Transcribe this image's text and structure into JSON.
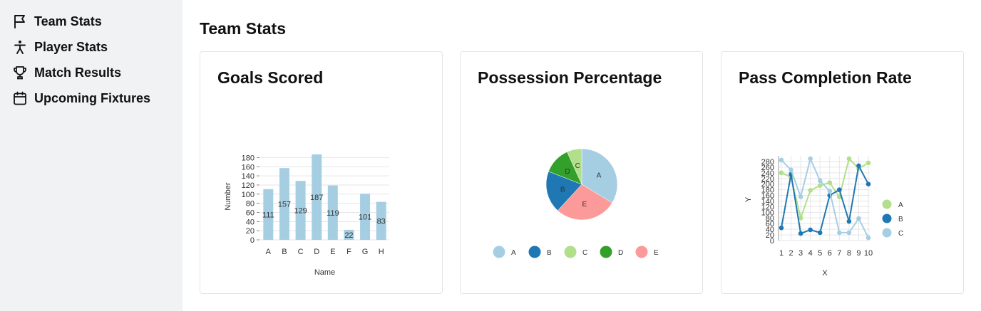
{
  "sidebar": {
    "items": [
      {
        "label": "Team Stats",
        "icon": "flag-icon"
      },
      {
        "label": "Player Stats",
        "icon": "person-icon"
      },
      {
        "label": "Match Results",
        "icon": "trophy-icon"
      },
      {
        "label": "Upcoming Fixtures",
        "icon": "calendar-icon"
      }
    ]
  },
  "page": {
    "title": "Team Stats"
  },
  "cards": [
    {
      "title": "Goals Scored"
    },
    {
      "title": "Possession Percentage"
    },
    {
      "title": "Pass Completion Rate"
    }
  ],
  "colors": {
    "light_blue": "#a6cee3",
    "blue": "#1f78b4",
    "light_green": "#b2df8a",
    "green": "#33a02c",
    "pink": "#fb9a99"
  },
  "chart_data": [
    {
      "type": "bar",
      "title": "Goals Scored",
      "xlabel": "Name",
      "ylabel": "Number",
      "categories": [
        "A",
        "B",
        "C",
        "D",
        "E",
        "F",
        "G",
        "H"
      ],
      "values": [
        111,
        157,
        129,
        187,
        119,
        22,
        101,
        83
      ],
      "yticks": [
        0,
        20,
        40,
        60,
        80,
        100,
        120,
        140,
        160,
        180
      ],
      "ylim": [
        0,
        190
      ],
      "grid": true,
      "color": "#a6cee3"
    },
    {
      "type": "pie",
      "title": "Possession Percentage",
      "categories": [
        "A",
        "B",
        "C",
        "D",
        "E"
      ],
      "values": [
        30,
        17,
        6,
        11,
        25
      ],
      "colors": [
        "#a6cee3",
        "#1f78b4",
        "#b2df8a",
        "#33a02c",
        "#fb9a99"
      ],
      "legend": "bottom"
    },
    {
      "type": "line",
      "title": "Pass Completion Rate",
      "xlabel": "X",
      "ylabel": "Y",
      "x": [
        1,
        2,
        3,
        4,
        5,
        6,
        7,
        8,
        9,
        10
      ],
      "yticks": [
        0,
        20,
        40,
        60,
        80,
        100,
        120,
        140,
        160,
        180,
        200,
        220,
        240,
        260,
        280
      ],
      "ylim": [
        0,
        290
      ],
      "grid": true,
      "legend": "right",
      "series": [
        {
          "name": "A",
          "color": "#b2df8a",
          "values": [
            240,
            225,
            80,
            178,
            195,
            205,
            155,
            290,
            255,
            275
          ]
        },
        {
          "name": "B",
          "color": "#1f78b4",
          "values": [
            45,
            235,
            25,
            38,
            28,
            160,
            180,
            68,
            265,
            200
          ]
        },
        {
          "name": "C",
          "color": "#a6cee3",
          "values": [
            285,
            250,
            155,
            290,
            212,
            175,
            28,
            28,
            78,
            10
          ]
        }
      ]
    }
  ]
}
